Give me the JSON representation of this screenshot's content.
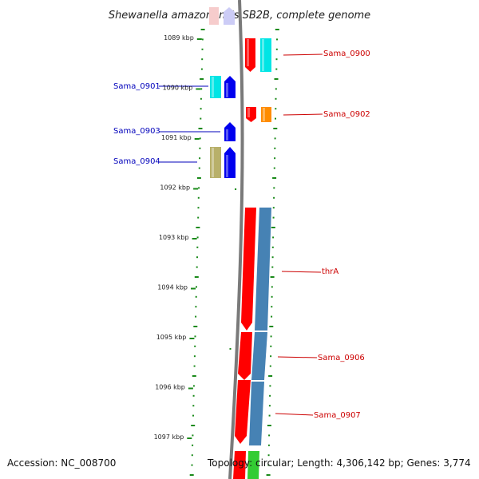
{
  "title": "Shewanella amazonensis SB2B, complete genome",
  "footer": {
    "accession": "Accession: NC_008700",
    "summary": "Topology: circular; Length: 4,306,142 bp; Genes: 3,774"
  },
  "ruler_labels": [
    "1089 kbp",
    "1090 kbp",
    "1091 kbp",
    "1092 kbp",
    "1093 kbp",
    "1094 kbp",
    "1095 kbp",
    "1096 kbp",
    "1097 kbp"
  ],
  "genes_left": [
    {
      "id": "Sama_0901",
      "label": "Sama_0901",
      "color": "#0000bb"
    },
    {
      "id": "Sama_0903",
      "label": "Sama_0903",
      "color": "#0000bb"
    },
    {
      "id": "Sama_0904",
      "label": "Sama_0904",
      "color": "#0000bb"
    }
  ],
  "genes_right": [
    {
      "id": "Sama_0900",
      "label": "Sama_0900",
      "color": "#cc0000"
    },
    {
      "id": "Sama_0902",
      "label": "Sama_0902",
      "color": "#cc0000"
    },
    {
      "id": "thrA",
      "label": "thrA",
      "color": "#cc0000"
    },
    {
      "id": "Sama_0906",
      "label": "Sama_0906",
      "color": "#cc0000"
    },
    {
      "id": "Sama_0907",
      "label": "Sama_0907",
      "color": "#cc0000"
    }
  ],
  "colors": {
    "forward_gene": "#ff0000",
    "reverse_gene": "#0000ee",
    "cyan_feature": "#00e5e5",
    "orange_feature": "#ff8c00",
    "blue_feature": "#4682b4",
    "olive_feature": "#b8b06a",
    "green_feature": "#33cc33",
    "ruler_dots": "#1a8a1a",
    "backbone": "#7a7a7a"
  }
}
